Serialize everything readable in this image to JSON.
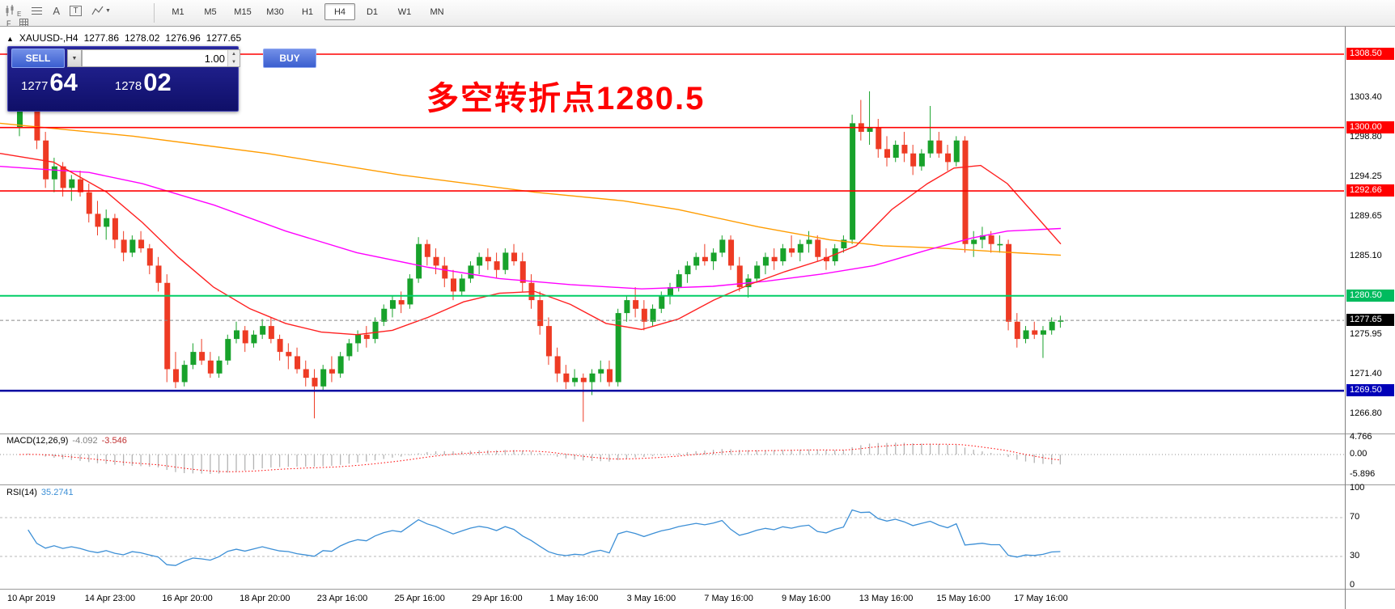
{
  "toolbar": {
    "timeframes": [
      "M1",
      "M5",
      "M15",
      "M30",
      "H1",
      "H4",
      "D1",
      "W1",
      "MN"
    ],
    "active_timeframe": "H4",
    "icon_labels": {
      "indicators_sub": "E",
      "objects_label": "F",
      "text_label": "A",
      "textbox_label": "T"
    }
  },
  "chart_header": {
    "marker": "▲",
    "symbol": "XAUUSD-,H4",
    "open": "1277.86",
    "high": "1278.02",
    "low": "1276.96",
    "close": "1277.65"
  },
  "trade_panel": {
    "sell_label": "SELL",
    "buy_label": "BUY",
    "volume": "1.00",
    "sell_price_main": "1277",
    "sell_price_pips": "64",
    "buy_price_main": "1278",
    "buy_price_pips": "02"
  },
  "annotation": {
    "text": "多空转折点1280.5",
    "color": "#ff0000"
  },
  "price_axis": {
    "ticks": [
      1303.4,
      1298.8,
      1294.25,
      1289.65,
      1285.1,
      1275.95,
      1271.4,
      1266.8
    ],
    "levels": [
      {
        "label": "1308.50",
        "price": 1308.5,
        "line_color": "#ff0000",
        "box_color": "#ff0000",
        "line_width": 1.6
      },
      {
        "label": "1300.00",
        "price": 1300.0,
        "line_color": "#ff0000",
        "box_color": "#ff0000",
        "line_width": 1.6
      },
      {
        "label": "1292.66",
        "price": 1292.66,
        "line_color": "#ff0000",
        "box_color": "#ff0000",
        "line_width": 1.6
      },
      {
        "label": "1280.50",
        "price": 1280.5,
        "line_color": "#00cd66",
        "box_color": "#00bb5e",
        "line_width": 2
      },
      {
        "label": "1269.50",
        "price": 1269.5,
        "line_color": "#0000a0",
        "box_color": "#0000b8",
        "line_width": 2.4
      }
    ],
    "current": {
      "label": "1277.65",
      "price": 1277.65,
      "box_color": "#000000"
    }
  },
  "macd_panel": {
    "label": "MACD(12,26,9)",
    "value_main": "-4.092",
    "value_signal": "-3.546",
    "axis_labels": [
      "4.766",
      "0.00",
      "-5.896"
    ],
    "fast": 12,
    "slow": 26,
    "signal": 9
  },
  "rsi_panel": {
    "label": "RSI(14)",
    "value": "35.2741",
    "axis_labels": [
      "100",
      "70",
      "30",
      "0"
    ],
    "period": 14,
    "levels": [
      70,
      30
    ]
  },
  "time_axis": {
    "labels": [
      "10 Apr 2019",
      "14 Apr 23:00",
      "16 Apr 20:00",
      "18 Apr 20:00",
      "23 Apr 16:00",
      "25 Apr 16:00",
      "29 Apr 16:00",
      "1 May 16:00",
      "3 May 16:00",
      "7 May 16:00",
      "9 May 16:00",
      "13 May 16:00",
      "15 May 16:00",
      "17 May 16:00"
    ]
  },
  "chart_data": {
    "type": "candlestick",
    "symbol": "XAUUSD",
    "timeframe": "H4",
    "title": "XAUUSD-,H4 1277.86 1278.02 1276.96 1277.65",
    "ylim": [
      1266.8,
      1308.5
    ],
    "up_color": "#18a22b",
    "down_color": "#ee3b24",
    "candles": [
      [
        1300.0,
        1304.5,
        1299.0,
        1303.0
      ],
      [
        1303.0,
        1308.4,
        1302.0,
        1307.5
      ],
      [
        1307.5,
        1307.8,
        1297.5,
        1298.5
      ],
      [
        1298.5,
        1299.5,
        1293.0,
        1294.0
      ],
      [
        1294.0,
        1296.5,
        1292.5,
        1295.5
      ],
      [
        1295.5,
        1296.0,
        1292.0,
        1293.0
      ],
      [
        1293.0,
        1294.5,
        1291.5,
        1294.0
      ],
      [
        1294.0,
        1295.0,
        1292.0,
        1292.5
      ],
      [
        1292.5,
        1293.5,
        1289.0,
        1290.0
      ],
      [
        1290.0,
        1291.5,
        1287.5,
        1288.5
      ],
      [
        1288.5,
        1290.5,
        1287.0,
        1289.5
      ],
      [
        1289.5,
        1290.0,
        1286.0,
        1287.0
      ],
      [
        1287.0,
        1288.0,
        1284.5,
        1285.5
      ],
      [
        1285.5,
        1287.5,
        1285.0,
        1287.0
      ],
      [
        1287.0,
        1288.0,
        1285.5,
        1286.0
      ],
      [
        1286.0,
        1286.5,
        1283.0,
        1284.0
      ],
      [
        1284.0,
        1285.0,
        1281.0,
        1282.0
      ],
      [
        1282.0,
        1283.0,
        1270.5,
        1272.0
      ],
      [
        1272.0,
        1274.0,
        1269.8,
        1270.5
      ],
      [
        1270.5,
        1273.0,
        1270.0,
        1272.5
      ],
      [
        1272.5,
        1275.0,
        1272.0,
        1274.0
      ],
      [
        1274.0,
        1275.5,
        1272.5,
        1273.0
      ],
      [
        1273.0,
        1274.0,
        1271.0,
        1271.5
      ],
      [
        1271.5,
        1273.5,
        1271.0,
        1273.0
      ],
      [
        1273.0,
        1276.0,
        1272.5,
        1275.5
      ],
      [
        1275.5,
        1277.5,
        1275.0,
        1276.5
      ],
      [
        1276.5,
        1277.0,
        1274.0,
        1275.0
      ],
      [
        1275.0,
        1276.5,
        1274.5,
        1276.0
      ],
      [
        1276.0,
        1277.8,
        1275.5,
        1277.0
      ],
      [
        1277.0,
        1278.0,
        1275.0,
        1275.5
      ],
      [
        1275.5,
        1276.0,
        1273.0,
        1274.0
      ],
      [
        1274.0,
        1275.0,
        1272.0,
        1273.5
      ],
      [
        1273.5,
        1274.5,
        1271.5,
        1272.0
      ],
      [
        1272.0,
        1273.0,
        1270.0,
        1271.0
      ],
      [
        1271.0,
        1272.0,
        1266.3,
        1270.0
      ],
      [
        1270.0,
        1272.5,
        1269.5,
        1272.0
      ],
      [
        1272.0,
        1273.5,
        1270.5,
        1271.5
      ],
      [
        1271.5,
        1274.0,
        1271.0,
        1273.5
      ],
      [
        1273.5,
        1275.5,
        1273.0,
        1275.0
      ],
      [
        1275.0,
        1276.5,
        1274.0,
        1276.0
      ],
      [
        1276.0,
        1277.0,
        1274.5,
        1275.5
      ],
      [
        1275.5,
        1278.0,
        1275.0,
        1277.5
      ],
      [
        1277.5,
        1279.5,
        1277.0,
        1279.0
      ],
      [
        1279.0,
        1280.5,
        1278.0,
        1280.0
      ],
      [
        1280.0,
        1281.0,
        1278.5,
        1279.5
      ],
      [
        1279.5,
        1283.0,
        1279.0,
        1282.5
      ],
      [
        1282.5,
        1287.3,
        1282.0,
        1286.5
      ],
      [
        1286.5,
        1287.0,
        1284.0,
        1285.0
      ],
      [
        1285.0,
        1286.0,
        1283.0,
        1284.0
      ],
      [
        1284.0,
        1285.0,
        1281.5,
        1282.5
      ],
      [
        1282.5,
        1283.5,
        1280.0,
        1281.0
      ],
      [
        1281.0,
        1283.0,
        1280.5,
        1282.5
      ],
      [
        1282.5,
        1284.5,
        1282.0,
        1284.0
      ],
      [
        1284.0,
        1285.5,
        1283.0,
        1285.0
      ],
      [
        1285.0,
        1286.0,
        1283.5,
        1284.5
      ],
      [
        1284.5,
        1285.5,
        1282.5,
        1283.5
      ],
      [
        1283.5,
        1286.0,
        1283.0,
        1285.5
      ],
      [
        1285.5,
        1286.5,
        1284.0,
        1284.5
      ],
      [
        1284.5,
        1285.5,
        1281.0,
        1282.0
      ],
      [
        1282.0,
        1283.0,
        1279.0,
        1280.0
      ],
      [
        1280.0,
        1281.0,
        1276.0,
        1277.0
      ],
      [
        1277.0,
        1278.0,
        1272.5,
        1273.5
      ],
      [
        1273.5,
        1274.5,
        1270.5,
        1271.5
      ],
      [
        1271.5,
        1272.5,
        1269.7,
        1270.5
      ],
      [
        1270.5,
        1272.0,
        1270.0,
        1271.0
      ],
      [
        1271.0,
        1271.5,
        1265.9,
        1270.5
      ],
      [
        1270.5,
        1272.0,
        1269.0,
        1271.5
      ],
      [
        1271.5,
        1273.0,
        1270.5,
        1272.0
      ],
      [
        1272.0,
        1273.0,
        1270.0,
        1270.5
      ],
      [
        1270.5,
        1279.0,
        1270.0,
        1278.5
      ],
      [
        1278.5,
        1280.5,
        1277.5,
        1280.0
      ],
      [
        1280.0,
        1281.5,
        1278.0,
        1279.0
      ],
      [
        1279.0,
        1280.0,
        1276.5,
        1277.5
      ],
      [
        1277.5,
        1279.5,
        1277.0,
        1279.0
      ],
      [
        1279.0,
        1281.0,
        1278.5,
        1280.5
      ],
      [
        1280.5,
        1282.0,
        1279.5,
        1281.5
      ],
      [
        1281.5,
        1283.5,
        1281.0,
        1283.0
      ],
      [
        1283.0,
        1284.5,
        1282.0,
        1284.0
      ],
      [
        1284.0,
        1285.5,
        1283.5,
        1285.0
      ],
      [
        1285.0,
        1286.5,
        1284.0,
        1284.5
      ],
      [
        1284.5,
        1286.0,
        1283.5,
        1285.5
      ],
      [
        1285.5,
        1287.5,
        1285.0,
        1287.0
      ],
      [
        1287.0,
        1287.5,
        1283.5,
        1284.0
      ],
      [
        1284.0,
        1285.0,
        1281.0,
        1281.5
      ],
      [
        1281.5,
        1283.0,
        1280.3,
        1282.5
      ],
      [
        1282.5,
        1284.5,
        1282.0,
        1284.0
      ],
      [
        1284.0,
        1285.5,
        1283.0,
        1285.0
      ],
      [
        1285.0,
        1286.0,
        1283.5,
        1284.5
      ],
      [
        1284.5,
        1286.5,
        1284.0,
        1286.0
      ],
      [
        1286.0,
        1287.5,
        1285.0,
        1285.5
      ],
      [
        1285.5,
        1287.0,
        1284.5,
        1286.5
      ],
      [
        1286.5,
        1288.0,
        1285.5,
        1287.0
      ],
      [
        1287.0,
        1287.5,
        1284.5,
        1285.0
      ],
      [
        1285.0,
        1286.0,
        1283.5,
        1284.5
      ],
      [
        1284.5,
        1286.5,
        1284.0,
        1286.0
      ],
      [
        1286.0,
        1287.5,
        1285.5,
        1287.0
      ],
      [
        1287.0,
        1301.5,
        1286.5,
        1300.5
      ],
      [
        1300.5,
        1303.2,
        1298.5,
        1299.5
      ],
      [
        1299.5,
        1304.2,
        1298.0,
        1300.0
      ],
      [
        1300.0,
        1301.0,
        1296.5,
        1297.5
      ],
      [
        1297.5,
        1299.0,
        1295.5,
        1296.5
      ],
      [
        1296.5,
        1298.5,
        1296.0,
        1298.0
      ],
      [
        1298.0,
        1299.5,
        1296.0,
        1297.0
      ],
      [
        1297.0,
        1298.0,
        1294.5,
        1295.5
      ],
      [
        1295.5,
        1297.5,
        1295.0,
        1297.0
      ],
      [
        1297.0,
        1302.5,
        1296.5,
        1298.5
      ],
      [
        1298.5,
        1299.5,
        1296.5,
        1297.0
      ],
      [
        1297.0,
        1298.0,
        1295.0,
        1296.0
      ],
      [
        1296.0,
        1299.0,
        1295.5,
        1298.5
      ],
      [
        1298.5,
        1299.0,
        1285.5,
        1286.5
      ],
      [
        1286.5,
        1288.0,
        1285.0,
        1287.0
      ],
      [
        1287.0,
        1288.5,
        1286.0,
        1287.5
      ],
      [
        1287.5,
        1288.0,
        1285.5,
        1286.5
      ],
      [
        1286.5,
        1287.5,
        1285.5,
        1286.5
      ],
      [
        1286.5,
        1287.0,
        1276.5,
        1277.5
      ],
      [
        1277.5,
        1278.5,
        1274.5,
        1275.5
      ],
      [
        1275.5,
        1277.0,
        1275.0,
        1276.5
      ],
      [
        1276.5,
        1277.5,
        1275.5,
        1276.0
      ],
      [
        1276.0,
        1277.0,
        1273.3,
        1276.5
      ],
      [
        1276.5,
        1278.0,
        1276.0,
        1277.5
      ],
      [
        1277.5,
        1278.2,
        1276.8,
        1277.65
      ]
    ],
    "ma_lines": [
      {
        "name": "slow-ma",
        "color": "#ff9c00",
        "points": [
          [
            0,
            1300.5
          ],
          [
            165,
            1299.0
          ],
          [
            330,
            1297.0
          ],
          [
            496,
            1294.5
          ],
          [
            661,
            1292.5
          ],
          [
            771,
            1291.5
          ],
          [
            838,
            1290.5
          ],
          [
            937,
            1288.5
          ],
          [
            1025,
            1287.0
          ],
          [
            1091,
            1286.3
          ],
          [
            1168,
            1286.0
          ],
          [
            1234,
            1285.6
          ],
          [
            1311,
            1285.2
          ]
        ]
      },
      {
        "name": "mid-ma",
        "color": "#ff00ff",
        "points": [
          [
            0,
            1295.5
          ],
          [
            110,
            1294.8
          ],
          [
            176,
            1293.5
          ],
          [
            265,
            1291.0
          ],
          [
            353,
            1288.0
          ],
          [
            441,
            1285.5
          ],
          [
            529,
            1283.8
          ],
          [
            617,
            1282.5
          ],
          [
            705,
            1281.8
          ],
          [
            793,
            1281.3
          ],
          [
            881,
            1281.6
          ],
          [
            948,
            1282.2
          ],
          [
            1014,
            1283.0
          ],
          [
            1080,
            1284.0
          ],
          [
            1146,
            1285.8
          ],
          [
            1201,
            1287.2
          ],
          [
            1245,
            1288.0
          ],
          [
            1311,
            1288.3
          ]
        ]
      },
      {
        "name": "fast-ma",
        "color": "#ff2020",
        "points": [
          [
            0,
            1297.0
          ],
          [
            66,
            1296.0
          ],
          [
            132,
            1292.5
          ],
          [
            176,
            1289.0
          ],
          [
            220,
            1285.0
          ],
          [
            264,
            1281.5
          ],
          [
            309,
            1279.0
          ],
          [
            353,
            1277.3
          ],
          [
            397,
            1276.3
          ],
          [
            441,
            1276.0
          ],
          [
            485,
            1276.5
          ],
          [
            529,
            1278.0
          ],
          [
            573,
            1279.8
          ],
          [
            617,
            1280.8
          ],
          [
            661,
            1281.0
          ],
          [
            705,
            1279.5
          ],
          [
            749,
            1277.3
          ],
          [
            793,
            1276.6
          ],
          [
            838,
            1277.8
          ],
          [
            882,
            1280.0
          ],
          [
            926,
            1281.8
          ],
          [
            970,
            1283.3
          ],
          [
            1014,
            1284.6
          ],
          [
            1058,
            1286.3
          ],
          [
            1102,
            1290.5
          ],
          [
            1146,
            1293.5
          ],
          [
            1179,
            1295.3
          ],
          [
            1212,
            1295.6
          ],
          [
            1245,
            1293.5
          ],
          [
            1278,
            1290.0
          ],
          [
            1311,
            1286.5
          ]
        ]
      }
    ]
  }
}
